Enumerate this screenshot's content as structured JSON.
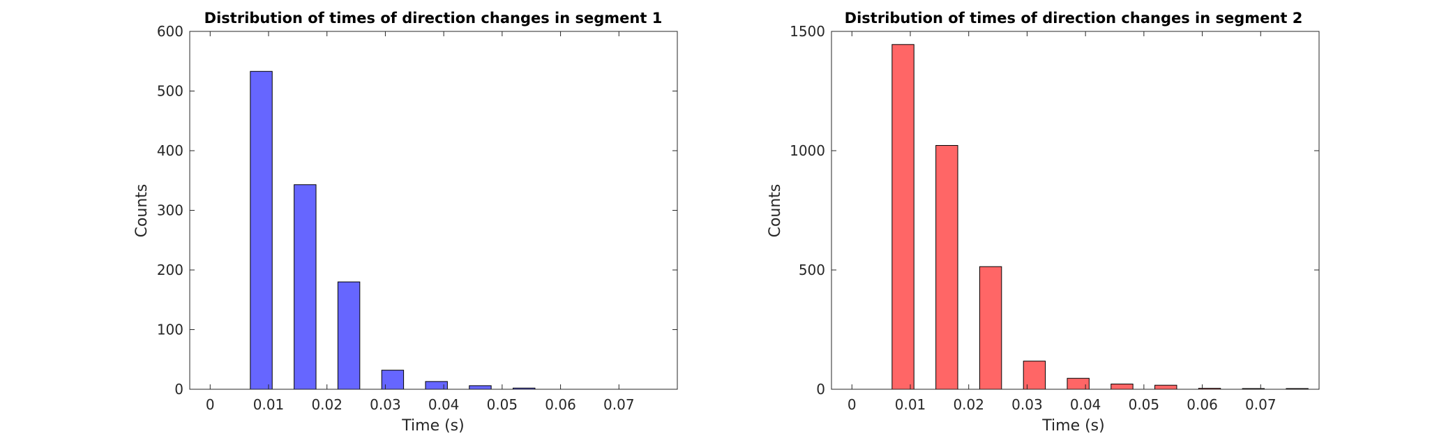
{
  "chart_data": [
    {
      "type": "bar",
      "title": "Distribution of times of direction changes in segment 1",
      "xlabel": "Time (s)",
      "ylabel": "Counts",
      "x": [
        0.00875,
        0.01625,
        0.02375,
        0.03125,
        0.03875,
        0.04625,
        0.05375
      ],
      "values": [
        533,
        343,
        180,
        32,
        13,
        6,
        2
      ],
      "bar_width": 0.00375,
      "xlim": [
        -0.0035,
        0.08
      ],
      "ylim": [
        0,
        600
      ],
      "xticks": [
        0,
        0.01,
        0.02,
        0.03,
        0.04,
        0.05,
        0.06,
        0.07
      ],
      "xtick_labels": [
        "0",
        "0.01",
        "0.02",
        "0.03",
        "0.04",
        "0.05",
        "0.06",
        "0.07"
      ],
      "yticks": [
        0,
        100,
        200,
        300,
        400,
        500,
        600
      ],
      "ytick_labels": [
        "0",
        "100",
        "200",
        "300",
        "400",
        "500",
        "600"
      ],
      "color": "#6666ff",
      "grid": false
    },
    {
      "type": "bar",
      "title": "Distribution of times of direction changes in segment 2",
      "xlabel": "Time (s)",
      "ylabel": "Counts",
      "x": [
        0.00875,
        0.01625,
        0.02375,
        0.03125,
        0.03875,
        0.04625,
        0.05375,
        0.06125,
        0.06875,
        0.07625
      ],
      "values": [
        1445,
        1022,
        514,
        118,
        46,
        22,
        17,
        4,
        3,
        3
      ],
      "bar_width": 0.00375,
      "xlim": [
        -0.0035,
        0.08
      ],
      "ylim": [
        0,
        1500
      ],
      "xticks": [
        0,
        0.01,
        0.02,
        0.03,
        0.04,
        0.05,
        0.06,
        0.07
      ],
      "xtick_labels": [
        "0",
        "0.01",
        "0.02",
        "0.03",
        "0.04",
        "0.05",
        "0.06",
        "0.07"
      ],
      "yticks": [
        0,
        500,
        1000,
        1500
      ],
      "ytick_labels": [
        "0",
        "500",
        "1000",
        "1500"
      ],
      "color": "#ff6666",
      "grid": false
    }
  ]
}
